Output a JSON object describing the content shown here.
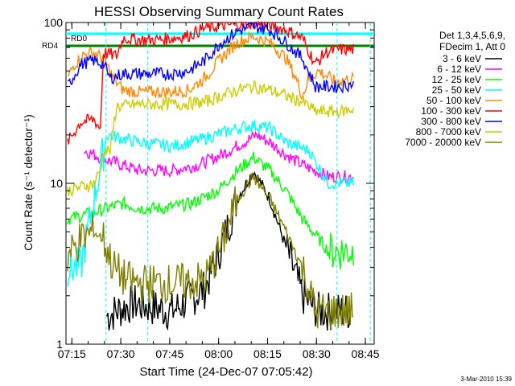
{
  "chart_data": {
    "type": "line",
    "title": "HESSI Observing Summary Count Rates",
    "xlabel": "Start Time (24-Dec-07 07:05:42)",
    "ylabel": "Count Rate (s⁻¹ detector⁻¹)",
    "y_scale": "log",
    "ylim": [
      1,
      100
    ],
    "xlim_minutes": [
      7.5,
      102
    ],
    "x_ticks": [
      {
        "label": "07:15",
        "min": 9.3
      },
      {
        "label": "07:30",
        "min": 24.3
      },
      {
        "label": "07:45",
        "min": 39.3
      },
      {
        "label": "08:00",
        "min": 54.3
      },
      {
        "label": "08:15",
        "min": 69.3
      },
      {
        "label": "08:30",
        "min": 84.3
      },
      {
        "label": "08:45",
        "min": 99.3
      }
    ],
    "y_ticks": [
      {
        "label": "1",
        "v": 1
      },
      {
        "label": "10",
        "v": 10
      },
      {
        "label": "100",
        "v": 100
      }
    ],
    "legend_header": [
      "Det 1,3,4,5,6,9,",
      "FDecim 1, Att 0"
    ],
    "legend_placement": "right",
    "series": [
      {
        "name": "3 - 6 keV",
        "color": "#000000",
        "points": [
          [
            20,
            1.5
          ],
          [
            28,
            1.8
          ],
          [
            40,
            1.6
          ],
          [
            50,
            2.2
          ],
          [
            55,
            4
          ],
          [
            60,
            8
          ],
          [
            65,
            12
          ],
          [
            70,
            8
          ],
          [
            75,
            4
          ],
          [
            80,
            2
          ],
          [
            85,
            1.6
          ],
          [
            95,
            1.6
          ]
        ]
      },
      {
        "name": "6 - 12 keV",
        "color": "#ff00ff",
        "points": [
          [
            13,
            16
          ],
          [
            20,
            14
          ],
          [
            30,
            12
          ],
          [
            40,
            12
          ],
          [
            48,
            13
          ],
          [
            55,
            15
          ],
          [
            62,
            18
          ],
          [
            66,
            20
          ],
          [
            70,
            18
          ],
          [
            75,
            15
          ],
          [
            80,
            13
          ],
          [
            88,
            11
          ],
          [
            96,
            11
          ]
        ]
      },
      {
        "name": "12 - 25 keV",
        "color": "#00ff00",
        "points": [
          [
            8,
            6
          ],
          [
            15,
            6.5
          ],
          [
            20,
            7
          ],
          [
            25,
            7.5
          ],
          [
            30,
            7
          ],
          [
            38,
            7
          ],
          [
            46,
            7.5
          ],
          [
            54,
            9
          ],
          [
            60,
            12
          ],
          [
            65,
            14.5
          ],
          [
            70,
            12
          ],
          [
            75,
            9
          ],
          [
            80,
            6
          ],
          [
            88,
            3.8
          ],
          [
            96,
            3.8
          ]
        ]
      },
      {
        "name": "25 - 50 keV",
        "color": "#00ffff",
        "points": [
          [
            8,
            3
          ],
          [
            12,
            3
          ],
          [
            20,
            20
          ],
          [
            30,
            18
          ],
          [
            40,
            17
          ],
          [
            50,
            19
          ],
          [
            60,
            22
          ],
          [
            65,
            23
          ],
          [
            70,
            22
          ],
          [
            75,
            18
          ],
          [
            82,
            16
          ],
          [
            88,
            10
          ],
          [
            96,
            10
          ]
        ]
      },
      {
        "name": "50 - 100 keV",
        "color": "#ff8800",
        "points": [
          [
            8,
            45
          ],
          [
            10,
            55
          ],
          [
            13,
            63
          ],
          [
            16,
            65
          ],
          [
            19,
            60
          ],
          [
            22,
            45
          ],
          [
            25,
            38
          ],
          [
            30,
            37
          ],
          [
            35,
            37
          ],
          [
            40,
            37
          ],
          [
            45,
            38
          ],
          [
            50,
            45
          ],
          [
            55,
            60
          ],
          [
            60,
            75
          ],
          [
            65,
            82
          ],
          [
            70,
            75
          ],
          [
            75,
            60
          ],
          [
            78,
            45
          ],
          [
            80,
            35
          ],
          [
            82,
            45
          ],
          [
            85,
            50
          ],
          [
            90,
            43
          ],
          [
            96,
            45
          ]
        ]
      },
      {
        "name": "100 - 300 keV",
        "color": "#ff0000",
        "points": [
          [
            8,
            18
          ],
          [
            12,
            24
          ],
          [
            16,
            25
          ],
          [
            18,
            22
          ],
          [
            19,
            65
          ],
          [
            23,
            62
          ],
          [
            25,
            80
          ],
          [
            30,
            78
          ],
          [
            35,
            78
          ],
          [
            40,
            80
          ],
          [
            45,
            83
          ],
          [
            50,
            92
          ],
          [
            55,
            95
          ],
          [
            60,
            98
          ],
          [
            65,
            99
          ],
          [
            70,
            96
          ],
          [
            75,
            90
          ],
          [
            80,
            80
          ],
          [
            84,
            55
          ],
          [
            87,
            65
          ],
          [
            91,
            68
          ],
          [
            96,
            68
          ]
        ]
      },
      {
        "name": "300 - 800 keV",
        "color": "#0000ff",
        "points": [
          [
            8,
            40
          ],
          [
            12,
            55
          ],
          [
            16,
            58
          ],
          [
            19,
            55
          ],
          [
            21,
            45
          ],
          [
            25,
            48
          ],
          [
            30,
            48
          ],
          [
            35,
            48
          ],
          [
            40,
            48
          ],
          [
            45,
            50
          ],
          [
            50,
            58
          ],
          [
            55,
            75
          ],
          [
            60,
            88
          ],
          [
            65,
            95
          ],
          [
            70,
            90
          ],
          [
            75,
            75
          ],
          [
            80,
            60
          ],
          [
            84,
            40
          ],
          [
            88,
            40
          ],
          [
            92,
            40
          ],
          [
            96,
            42
          ]
        ]
      },
      {
        "name": "800 - 7000 keV",
        "color": "#cccc00",
        "points": [
          [
            8,
            9
          ],
          [
            12,
            9.5
          ],
          [
            16,
            10
          ],
          [
            18,
            12
          ],
          [
            19,
            16
          ],
          [
            21,
            16
          ],
          [
            23,
            30
          ],
          [
            30,
            31
          ],
          [
            36,
            31
          ],
          [
            42,
            31
          ],
          [
            50,
            32
          ],
          [
            55,
            35
          ],
          [
            60,
            38
          ],
          [
            65,
            40
          ],
          [
            70,
            38
          ],
          [
            75,
            35
          ],
          [
            80,
            32
          ],
          [
            84,
            28
          ],
          [
            88,
            28
          ],
          [
            92,
            28
          ],
          [
            96,
            29
          ]
        ]
      },
      {
        "name": "7000 - 20000 keV",
        "color": "#808000",
        "points": [
          [
            8,
            3.5
          ],
          [
            12,
            4.5
          ],
          [
            16,
            5
          ],
          [
            19,
            4.5
          ],
          [
            22,
            3
          ],
          [
            26,
            2.5
          ],
          [
            30,
            2.4
          ],
          [
            36,
            2.4
          ],
          [
            42,
            2.4
          ],
          [
            50,
            2.5
          ],
          [
            55,
            4
          ],
          [
            60,
            8
          ],
          [
            65,
            11
          ],
          [
            70,
            8
          ],
          [
            75,
            5
          ],
          [
            80,
            3
          ],
          [
            84,
            1.6
          ],
          [
            88,
            1.6
          ],
          [
            96,
            1.6
          ]
        ]
      }
    ],
    "flag_bars": [
      {
        "name": "RD0",
        "color": "#00ffff"
      },
      {
        "name": "RD4",
        "color": "#008000"
      }
    ],
    "footer_date": "3-Mar-2010 15:39"
  }
}
